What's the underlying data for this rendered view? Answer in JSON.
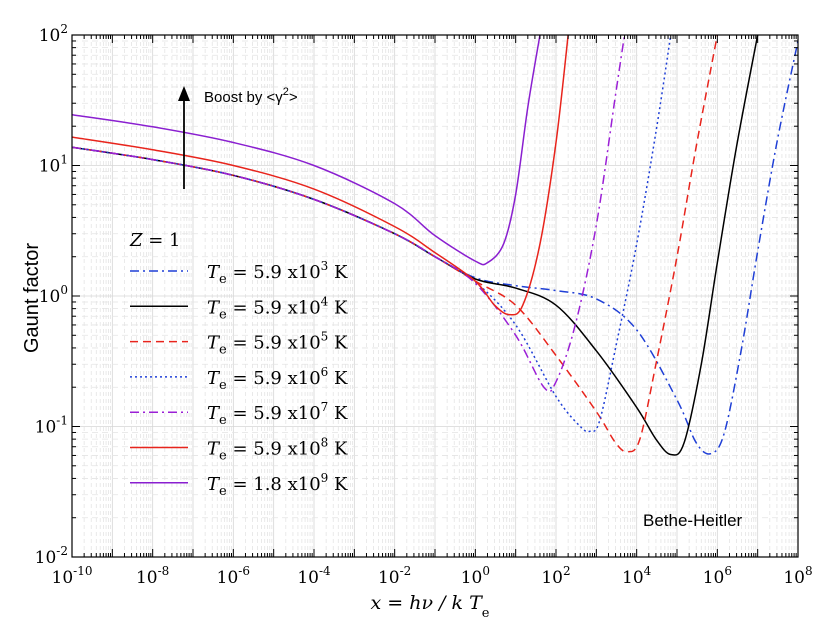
{
  "chart_data": {
    "type": "line",
    "xlabel": "x = hν / k Te",
    "ylabel": "Gaunt factor",
    "xscale": "log",
    "yscale": "log",
    "xlim": [
      1e-10,
      100000000.0
    ],
    "ylim": [
      0.01,
      100
    ],
    "x_ticks": [
      {
        "base": "10",
        "exp": "-10",
        "value": 1e-10
      },
      {
        "base": "10",
        "exp": "-8",
        "value": 1e-08
      },
      {
        "base": "10",
        "exp": "-6",
        "value": 1e-06
      },
      {
        "base": "10",
        "exp": "-4",
        "value": 0.0001
      },
      {
        "base": "10",
        "exp": "-2",
        "value": 0.01
      },
      {
        "base": "10",
        "exp": "0",
        "value": 1
      },
      {
        "base": "10",
        "exp": "2",
        "value": 100.0
      },
      {
        "base": "10",
        "exp": "4",
        "value": 10000.0
      },
      {
        "base": "10",
        "exp": "6",
        "value": 1000000.0
      },
      {
        "base": "10",
        "exp": "8",
        "value": 100000000.0
      }
    ],
    "y_ticks": [
      {
        "base": "10",
        "exp": "-2",
        "value": 0.01
      },
      {
        "base": "10",
        "exp": "-1",
        "value": 0.1
      },
      {
        "base": "10",
        "exp": "0",
        "value": 1
      },
      {
        "base": "10",
        "exp": "1",
        "value": 10
      },
      {
        "base": "10",
        "exp": "2",
        "value": 100
      }
    ],
    "grid": true,
    "legend_position": "left-middle",
    "legend_header": {
      "symbol": "Z",
      "text": " = 1"
    },
    "annotations": {
      "boost": {
        "prefix": "Boost by <γ",
        "sup": "2",
        "suffix": ">"
      },
      "regime": "Bethe-Heitler"
    },
    "series": [
      {
        "name": "Te = 5.9 x10^3 K",
        "label": {
          "sym": "T",
          "sub": "e",
          "text": " = 5.9 x10",
          "sup": "3",
          "unit": " K"
        },
        "color": "#1f3fd6",
        "dash": "dashdot",
        "points": [
          [
            1e-10,
            13.8
          ],
          [
            1e-08,
            11.1
          ],
          [
            1e-06,
            8.4
          ],
          [
            0.0001,
            5.5
          ],
          [
            0.01,
            3.0
          ],
          [
            0.1,
            2.0
          ],
          [
            1,
            1.38
          ],
          [
            10,
            1.2
          ],
          [
            100,
            1.1
          ],
          [
            1000.0,
            0.95
          ],
          [
            10000.0,
            0.55
          ],
          [
            100000.0,
            0.16
          ],
          [
            300000.0,
            0.075
          ],
          [
            700000.0,
            0.062
          ],
          [
            1500000.0,
            0.09
          ],
          [
            4000000.0,
            0.4
          ],
          [
            10000000.0,
            2.2
          ],
          [
            30000000.0,
            15
          ],
          [
            100000000.0,
            90
          ]
        ]
      },
      {
        "name": "Te = 5.9 x10^4 K",
        "label": {
          "sym": "T",
          "sub": "e",
          "text": " = 5.9 x10",
          "sup": "4",
          "unit": " K"
        },
        "color": "#000000",
        "dash": "solid",
        "points": [
          [
            1e-10,
            13.8
          ],
          [
            1e-08,
            11.1
          ],
          [
            1e-06,
            8.4
          ],
          [
            0.0001,
            5.5
          ],
          [
            0.01,
            3.0
          ],
          [
            0.1,
            2.0
          ],
          [
            1,
            1.35
          ],
          [
            10,
            1.15
          ],
          [
            100,
            0.85
          ],
          [
            1000.0,
            0.38
          ],
          [
            10000.0,
            0.14
          ],
          [
            30000.0,
            0.08
          ],
          [
            70000.0,
            0.061
          ],
          [
            150000.0,
            0.075
          ],
          [
            400000.0,
            0.3
          ],
          [
            1000000.0,
            1.8
          ],
          [
            3000000.0,
            14
          ],
          [
            10000000.0,
            100
          ]
        ]
      },
      {
        "name": "Te = 5.9 x10^5 K",
        "label": {
          "sym": "T",
          "sub": "e",
          "text": " = 5.9 x10",
          "sup": "5",
          "unit": " K"
        },
        "color": "#e8241c",
        "dash": "dashed",
        "points": [
          [
            1e-10,
            13.8
          ],
          [
            1e-08,
            11.1
          ],
          [
            1e-06,
            8.4
          ],
          [
            0.0001,
            5.5
          ],
          [
            0.01,
            3.0
          ],
          [
            0.1,
            2.0
          ],
          [
            1,
            1.3
          ],
          [
            10,
            0.85
          ],
          [
            100,
            0.35
          ],
          [
            1000.0,
            0.13
          ],
          [
            3000.0,
            0.075
          ],
          [
            6000.0,
            0.064
          ],
          [
            12000.0,
            0.08
          ],
          [
            30000.0,
            0.3
          ],
          [
            100000.0,
            2.0
          ],
          [
            300000.0,
            14
          ],
          [
            1000000.0,
            100
          ]
        ]
      },
      {
        "name": "Te = 5.9 x10^6 K",
        "label": {
          "sym": "T",
          "sub": "e",
          "text": " = 5.9 x10",
          "sup": "6",
          "unit": " K"
        },
        "color": "#1f3fd6",
        "dash": "dotted",
        "points": [
          [
            1e-10,
            13.8
          ],
          [
            1e-08,
            11.1
          ],
          [
            1e-06,
            8.4
          ],
          [
            0.0001,
            5.5
          ],
          [
            0.01,
            3.0
          ],
          [
            0.1,
            2.0
          ],
          [
            1,
            1.28
          ],
          [
            10,
            0.6
          ],
          [
            100,
            0.17
          ],
          [
            400,
            0.1
          ],
          [
            700,
            0.092
          ],
          [
            1200.0,
            0.11
          ],
          [
            3000.0,
            0.4
          ],
          [
            10000.0,
            2.5
          ],
          [
            30000.0,
            18
          ],
          [
            70000.0,
            100
          ]
        ]
      },
      {
        "name": "Te = 5.9 x10^7 K",
        "label": {
          "sym": "T",
          "sub": "e",
          "text": " = 5.9 x10",
          "sup": "7",
          "unit": " K"
        },
        "color": "#9b1fd6",
        "dash": "dashdot",
        "points": [
          [
            1e-10,
            13.8
          ],
          [
            1e-08,
            11.1
          ],
          [
            1e-06,
            8.4
          ],
          [
            0.0001,
            5.5
          ],
          [
            0.01,
            3.0
          ],
          [
            0.1,
            2.0
          ],
          [
            1,
            1.25
          ],
          [
            10,
            0.5
          ],
          [
            50,
            0.2
          ],
          [
            100,
            0.22
          ],
          [
            300,
            0.6
          ],
          [
            1000.0,
            3.5
          ],
          [
            3000.0,
            35
          ],
          [
            5000.0,
            100
          ]
        ]
      },
      {
        "name": "Te = 5.9 x10^8 K",
        "label": {
          "sym": "T",
          "sub": "e",
          "text": " = 5.9 x10",
          "sup": "8",
          "unit": " K"
        },
        "color": "#e8241c",
        "dash": "solid",
        "points": [
          [
            1e-10,
            16.5
          ],
          [
            1e-08,
            13.2
          ],
          [
            1e-06,
            10.0
          ],
          [
            0.0001,
            6.6
          ],
          [
            0.01,
            3.4
          ],
          [
            0.1,
            2.15
          ],
          [
            1,
            1.3
          ],
          [
            3,
            0.85
          ],
          [
            7,
            0.72
          ],
          [
            15,
            0.85
          ],
          [
            40,
            2.5
          ],
          [
            100,
            15
          ],
          [
            200,
            100
          ]
        ]
      },
      {
        "name": "Te = 1.8 x10^9 K",
        "label": {
          "sym": "T",
          "sub": "e",
          "text": " = 1.8 x10",
          "sup": "9",
          "unit": " K"
        },
        "color": "#8a1fd0",
        "dash": "solid",
        "points": [
          [
            1e-10,
            24.5
          ],
          [
            1e-08,
            19.8
          ],
          [
            1e-06,
            15.0
          ],
          [
            0.0001,
            10.0
          ],
          [
            0.01,
            5.1
          ],
          [
            0.1,
            2.9
          ],
          [
            1,
            1.85
          ],
          [
            2,
            1.8
          ],
          [
            5,
            2.5
          ],
          [
            10,
            6
          ],
          [
            20,
            28
          ],
          [
            40,
            100
          ]
        ]
      }
    ]
  }
}
